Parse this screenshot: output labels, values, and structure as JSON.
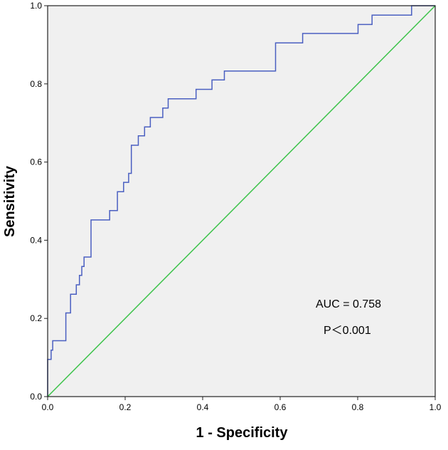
{
  "chart_data": {
    "type": "line",
    "title": "",
    "xlabel": "1 - Specificity",
    "ylabel": "Sensitivity",
    "xlim": [
      0,
      1
    ],
    "ylim": [
      0,
      1
    ],
    "xticks": [
      "0.0",
      "0.2",
      "0.4",
      "0.6",
      "0.8",
      "1.0"
    ],
    "yticks": [
      "0.0",
      "0.2",
      "0.4",
      "0.6",
      "0.8",
      "1.0"
    ],
    "grid": false,
    "background": "#f0f0f0",
    "annotations": [
      "AUC = 0.758",
      "P＜0.001"
    ],
    "series": [
      {
        "color": "#4a5fc1",
        "style": "step",
        "points": [
          [
            0.0,
            0.0
          ],
          [
            0.0,
            0.048
          ],
          [
            0.0,
            0.095
          ],
          [
            0.009,
            0.095
          ],
          [
            0.009,
            0.119
          ],
          [
            0.013,
            0.119
          ],
          [
            0.013,
            0.143
          ],
          [
            0.047,
            0.143
          ],
          [
            0.047,
            0.214
          ],
          [
            0.059,
            0.214
          ],
          [
            0.059,
            0.262
          ],
          [
            0.074,
            0.262
          ],
          [
            0.074,
            0.286
          ],
          [
            0.082,
            0.286
          ],
          [
            0.082,
            0.31
          ],
          [
            0.088,
            0.31
          ],
          [
            0.088,
            0.333
          ],
          [
            0.094,
            0.333
          ],
          [
            0.094,
            0.357
          ],
          [
            0.112,
            0.357
          ],
          [
            0.112,
            0.452
          ],
          [
            0.16,
            0.452
          ],
          [
            0.16,
            0.476
          ],
          [
            0.18,
            0.476
          ],
          [
            0.18,
            0.524
          ],
          [
            0.196,
            0.524
          ],
          [
            0.196,
            0.548
          ],
          [
            0.209,
            0.548
          ],
          [
            0.209,
            0.571
          ],
          [
            0.216,
            0.571
          ],
          [
            0.216,
            0.643
          ],
          [
            0.234,
            0.643
          ],
          [
            0.234,
            0.667
          ],
          [
            0.25,
            0.667
          ],
          [
            0.25,
            0.69
          ],
          [
            0.265,
            0.69
          ],
          [
            0.265,
            0.714
          ],
          [
            0.297,
            0.714
          ],
          [
            0.297,
            0.738
          ],
          [
            0.311,
            0.738
          ],
          [
            0.311,
            0.762
          ],
          [
            0.383,
            0.762
          ],
          [
            0.383,
            0.786
          ],
          [
            0.424,
            0.786
          ],
          [
            0.424,
            0.81
          ],
          [
            0.456,
            0.81
          ],
          [
            0.456,
            0.833
          ],
          [
            0.588,
            0.833
          ],
          [
            0.588,
            0.905
          ],
          [
            0.658,
            0.905
          ],
          [
            0.658,
            0.929
          ],
          [
            0.801,
            0.929
          ],
          [
            0.801,
            0.952
          ],
          [
            0.837,
            0.952
          ],
          [
            0.837,
            0.976
          ],
          [
            0.939,
            0.976
          ],
          [
            0.939,
            1.0
          ],
          [
            1.0,
            1.0
          ]
        ]
      },
      {
        "color": "#3cc34a",
        "style": "reference",
        "points": [
          [
            0,
            0
          ],
          [
            1,
            1
          ]
        ]
      }
    ]
  }
}
